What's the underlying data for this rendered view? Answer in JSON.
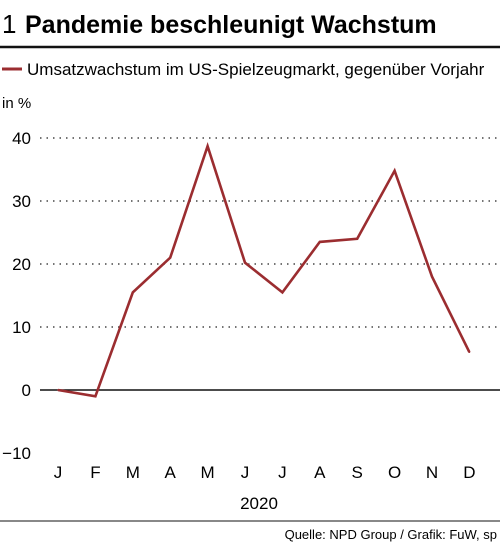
{
  "header": {
    "number": "1",
    "title": "Pandemie beschleunigt Wachstum"
  },
  "legend": {
    "label": "Umsatzwachstum im US-Spielzeugmarkt, gegenüber Vorjahr"
  },
  "unit_label": "in %",
  "source": "Quelle: NPD Group / Grafik: FuW, sp",
  "colors": {
    "series": "#9b2d30",
    "grid": "#222222",
    "rule": "#111111"
  },
  "chart_data": {
    "type": "line",
    "categories": [
      "J",
      "F",
      "M",
      "A",
      "M",
      "J",
      "J",
      "A",
      "S",
      "O",
      "N",
      "D"
    ],
    "xlabel": "2020",
    "ylabel": "in %",
    "ylim": [
      -10,
      40
    ],
    "yticks": [
      -10,
      0,
      10,
      20,
      30,
      40
    ],
    "grid": true,
    "legend_position": "top",
    "series": [
      {
        "name": "Umsatzwachstum im US-Spielzeugmarkt, gegenüber Vorjahr",
        "values": [
          0,
          -1,
          15.5,
          21,
          38.7,
          20.2,
          15.5,
          23.5,
          24,
          34.8,
          18,
          6
        ]
      }
    ]
  }
}
